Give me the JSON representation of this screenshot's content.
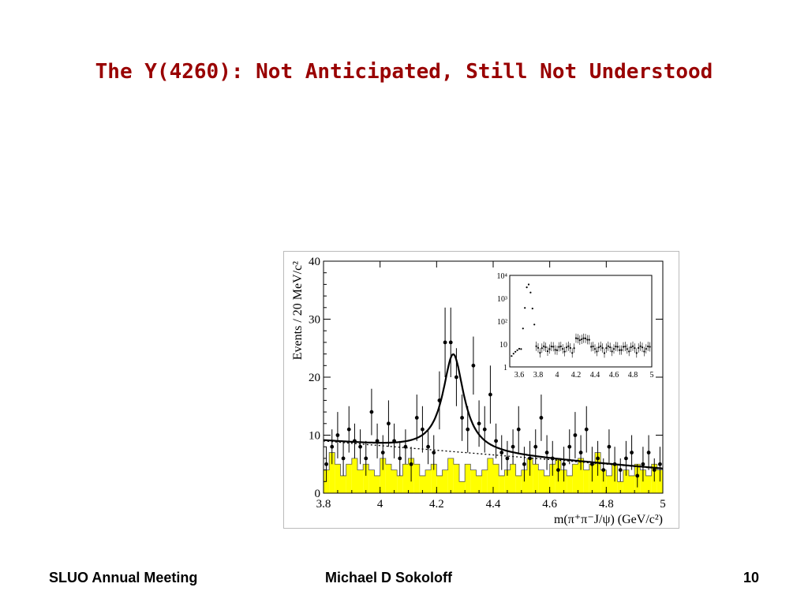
{
  "slide": {
    "title": "The Y(4260): Not Anticipated, Still Not Understood"
  },
  "footer": {
    "left": "SLUO Annual Meeting",
    "center": "Michael D Sokoloff",
    "right": "10"
  },
  "chart_data": [
    {
      "type": "histogram",
      "xlabel": "m(π⁺π⁻J/ψ) (GeV/c²)",
      "ylabel": "Events / 20 MeV/c²",
      "xlim": [
        3.8,
        5.0
      ],
      "ylim": [
        0,
        40
      ],
      "xticks": [
        "3.8",
        "4",
        "4.2",
        "4.4",
        "4.6",
        "4.8",
        "5"
      ],
      "yticks": [
        "0",
        "10",
        "20",
        "30",
        "40"
      ],
      "colors": {
        "sideband": "#ffff00",
        "data": "#000000",
        "fit": "#000000"
      },
      "sideband_bins": [
        4,
        7,
        5,
        3,
        5,
        6,
        4,
        5,
        4,
        3,
        6,
        5,
        4,
        3,
        5,
        6,
        5,
        3,
        4,
        5,
        3,
        4,
        6,
        5,
        2,
        5,
        4,
        3,
        4,
        6,
        5,
        3,
        4,
        5,
        3,
        4,
        6,
        5,
        4,
        3,
        5,
        6,
        4,
        3,
        5,
        6,
        4,
        5,
        7,
        4,
        3,
        5,
        2,
        4,
        3,
        5,
        4,
        3,
        5,
        4
      ],
      "points": {
        "x": [
          3.81,
          3.83,
          3.85,
          3.87,
          3.89,
          3.91,
          3.93,
          3.95,
          3.97,
          3.99,
          4.01,
          4.03,
          4.05,
          4.07,
          4.09,
          4.11,
          4.13,
          4.15,
          4.17,
          4.19,
          4.21,
          4.23,
          4.25,
          4.27,
          4.29,
          4.31,
          4.33,
          4.35,
          4.37,
          4.39,
          4.41,
          4.43,
          4.45,
          4.47,
          4.49,
          4.51,
          4.53,
          4.55,
          4.57,
          4.59,
          4.61,
          4.63,
          4.65,
          4.67,
          4.69,
          4.71,
          4.73,
          4.75,
          4.77,
          4.79,
          4.81,
          4.83,
          4.85,
          4.87,
          4.89,
          4.91,
          4.93,
          4.95,
          4.97,
          4.99
        ],
        "y": [
          5,
          8,
          10,
          6,
          11,
          9,
          8,
          6,
          14,
          9,
          7,
          12,
          9,
          6,
          8,
          5,
          13,
          11,
          8,
          7,
          16,
          26,
          26,
          20,
          13,
          11,
          22,
          12,
          11,
          17,
          9,
          7,
          6,
          8,
          11,
          5,
          6,
          8,
          13,
          7,
          6,
          4,
          5,
          8,
          10,
          7,
          11,
          5,
          6,
          4,
          8,
          5,
          4,
          6,
          7,
          3,
          5,
          7,
          4,
          5
        ],
        "err": [
          3,
          3,
          4,
          3,
          4,
          3,
          3,
          3,
          4,
          3,
          3,
          4,
          3,
          3,
          3,
          3,
          4,
          4,
          3,
          3,
          5,
          6,
          6,
          5,
          4,
          4,
          5,
          4,
          4,
          5,
          3,
          3,
          3,
          3,
          4,
          3,
          3,
          3,
          4,
          3,
          3,
          2,
          3,
          3,
          4,
          3,
          4,
          3,
          3,
          2,
          3,
          3,
          2,
          3,
          3,
          2,
          3,
          3,
          2,
          3
        ]
      },
      "inset": {
        "type": "scatter",
        "yscale": "log",
        "xlim": [
          3.5,
          5.0
        ],
        "ylim": [
          1,
          10000
        ],
        "xticks": [
          "3.6",
          "3.8",
          "4",
          "4.2",
          "4.4",
          "4.6",
          "4.8",
          "5"
        ],
        "yticks": [
          "1",
          "10",
          "10²",
          "10³",
          "10⁴"
        ]
      }
    }
  ]
}
